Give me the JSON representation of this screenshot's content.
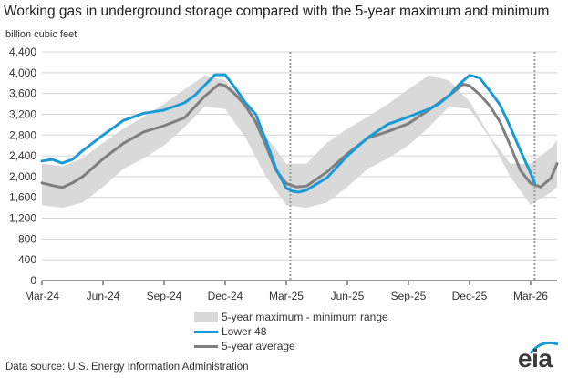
{
  "chart_data": {
    "type": "line",
    "title": "Working gas in underground  storage compared with the 5-year maximum and minimum",
    "ylabel": "billion cubic feet",
    "xlabel": "",
    "ylim": [
      0,
      4400
    ],
    "yticks": [
      0,
      400,
      800,
      1200,
      1600,
      2000,
      2400,
      2800,
      3200,
      3600,
      4000,
      4400
    ],
    "ytick_labels": [
      "0",
      "400",
      "800",
      "1,200",
      "1,600",
      "2,000",
      "2,400",
      "2,800",
      "3,200",
      "3,600",
      "4,000",
      "4,400"
    ],
    "xlim": [
      0,
      25.3
    ],
    "xticks": [
      0,
      3,
      6,
      9,
      12,
      15,
      18,
      21,
      24
    ],
    "xtick_labels": [
      "Mar-24",
      "Jun-24",
      "Sep-24",
      "Dec-24",
      "Mar-25",
      "Jun-25",
      "Sep-25",
      "Dec-25",
      "Mar-26"
    ],
    "reference_lines": [
      12.2,
      24.2
    ],
    "band": {
      "name": "5-year maximum - minimum range",
      "x": [
        0,
        1,
        2,
        3,
        4,
        5,
        6,
        7,
        8,
        9,
        10,
        11,
        12,
        13,
        14,
        15,
        16,
        17,
        18,
        19,
        20,
        21,
        22,
        23,
        24,
        25,
        25.3
      ],
      "max": [
        2250,
        2200,
        2350,
        2650,
        2920,
        3150,
        3400,
        3680,
        3950,
        3850,
        3450,
        2780,
        2250,
        2250,
        2650,
        2920,
        3150,
        3400,
        3680,
        3950,
        3850,
        3450,
        2780,
        2250,
        2250,
        2550,
        2700
      ],
      "min": [
        1450,
        1400,
        1500,
        1800,
        2150,
        2350,
        2600,
        2950,
        3350,
        3300,
        2750,
        2000,
        1450,
        1400,
        1500,
        1800,
        2150,
        2350,
        2600,
        2950,
        3350,
        3300,
        2750,
        2000,
        1450,
        1700,
        1800
      ]
    },
    "series": [
      {
        "name": "Lower 48",
        "color": "#1a9ad6",
        "x": [
          0,
          0.5,
          1,
          1.5,
          2,
          3,
          4,
          5,
          6,
          7,
          7.5,
          8,
          8.5,
          9,
          9.5,
          10,
          10.5,
          11,
          11.5,
          12,
          12.3,
          12.6,
          13,
          14,
          15,
          16,
          17,
          18,
          19,
          19.5,
          20,
          20.5,
          21,
          21.5,
          22,
          22.5,
          23,
          23.5,
          24,
          24.2
        ],
        "values": [
          2300,
          2330,
          2260,
          2330,
          2500,
          2800,
          3080,
          3220,
          3280,
          3420,
          3560,
          3760,
          3960,
          3960,
          3700,
          3420,
          3200,
          2700,
          2150,
          1780,
          1720,
          1700,
          1740,
          1980,
          2400,
          2750,
          3010,
          3150,
          3300,
          3400,
          3560,
          3780,
          3950,
          3900,
          3650,
          3380,
          2960,
          2500,
          2070,
          1870
        ]
      },
      {
        "name": "5-year average",
        "color": "#7f7f7f",
        "x": [
          0,
          0.5,
          1,
          1.5,
          2,
          3,
          4,
          5,
          6,
          7,
          8,
          8.7,
          9,
          9.5,
          10,
          10.5,
          11,
          11.5,
          12,
          12.5,
          13,
          14,
          15,
          16,
          17,
          18,
          19,
          20,
          20.7,
          21,
          21.5,
          22,
          22.5,
          23,
          23.5,
          24,
          24.5,
          25,
          25.3
        ],
        "values": [
          1880,
          1830,
          1790,
          1880,
          2000,
          2340,
          2640,
          2860,
          2980,
          3130,
          3550,
          3780,
          3750,
          3580,
          3360,
          3050,
          2600,
          2120,
          1870,
          1800,
          1820,
          2090,
          2440,
          2740,
          2870,
          3020,
          3280,
          3560,
          3780,
          3750,
          3580,
          3360,
          3050,
          2600,
          2120,
          1870,
          1800,
          1970,
          2250
        ]
      }
    ]
  },
  "legend": {
    "range_label": "5-year maximum - minimum range",
    "lower48_label": "Lower 48",
    "avg_label": "5-year average"
  },
  "footer": {
    "source": "Data source:  U.S. Energy Information Administration",
    "logo_text": "eia"
  }
}
